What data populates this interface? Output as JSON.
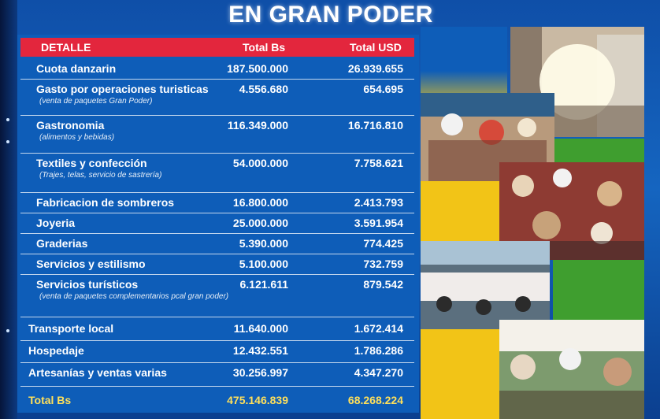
{
  "title": "EN GRAN PODER",
  "table": {
    "headers": {
      "detalle": "DETALLE",
      "total_bs": "Total Bs",
      "total_usd": "Total USD"
    },
    "rows": [
      {
        "label": "Cuota danzarin",
        "sub": "",
        "bs": "187.500.000",
        "usd": "26.939.655"
      },
      {
        "label": "Gasto por operaciones turisticas",
        "sub": "(venta de paquetes Gran Poder)",
        "bs": "4.556.680",
        "usd": "654.695"
      },
      {
        "label": "Gastronomia",
        "sub": "(alimentos y bebidas)",
        "bs": "116.349.000",
        "usd": "16.716.810"
      },
      {
        "label": "Textiles y confección",
        "sub": "(Trajes, telas, servicio de sastrería)",
        "bs": "54.000.000",
        "usd": "7.758.621"
      },
      {
        "label": "Fabricacion de sombreros",
        "sub": "",
        "bs": "16.800.000",
        "usd": "2.413.793"
      },
      {
        "label": "Joyeria",
        "sub": "",
        "bs": "25.000.000",
        "usd": "3.591.954"
      },
      {
        "label": "Graderias",
        "sub": "",
        "bs": "5.390.000",
        "usd": "774.425"
      },
      {
        "label": "Servicios y estilismo",
        "sub": "",
        "bs": "5.100.000",
        "usd": "732.759"
      },
      {
        "label": "Servicios turísticos",
        "sub": "(venta de paquetes complementarios pcal gran poder)",
        "bs": "6.121.611",
        "usd": "879.542"
      },
      {
        "label": "Transporte local",
        "sub": "",
        "bs": "11.640.000",
        "usd": "1.672.414"
      },
      {
        "label": "Hospedaje",
        "sub": "",
        "bs": "12.432.551",
        "usd": "1.786.286"
      },
      {
        "label": "Artesanías y ventas varias",
        "sub": "",
        "bs": "30.256.997",
        "usd": "4.347.270"
      }
    ],
    "total": {
      "label": "Total Bs",
      "bs": "475.146.839",
      "usd": "68.268.224"
    }
  },
  "colors": {
    "header_red": "#e3263d",
    "table_blue": "#0e5db8",
    "total_yellow": "#ffe05a",
    "tile_yellow": "#f2c417",
    "tile_green": "#3f9e2f"
  }
}
